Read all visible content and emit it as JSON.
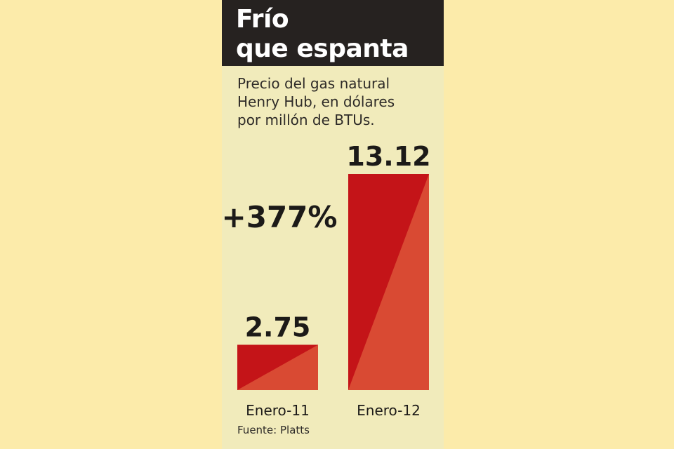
{
  "title": [
    "Frío",
    "que espanta"
  ],
  "subtitle": [
    "Precio del gas natural",
    "Henry Hub, en dólares",
    "por millón de BTUs."
  ],
  "annotation": "+377%",
  "source": "Fuente: Platts",
  "colors": {
    "bar_dark": "#c41418",
    "bar_light": "#d94a33",
    "header_bg": "#262220",
    "panel_bg": "#f1ebbb",
    "page_bg": "#fcebaa"
  },
  "chart_data": {
    "type": "bar",
    "title": "Frío que espanta",
    "categories": [
      "Enero-11",
      "Enero-12"
    ],
    "values": [
      2.75,
      13.12
    ],
    "value_labels": [
      "2.75",
      "13.12"
    ],
    "ylim": [
      0,
      13.12
    ],
    "grid": false,
    "legend": "none",
    "annotations": [
      "+377%"
    ]
  }
}
